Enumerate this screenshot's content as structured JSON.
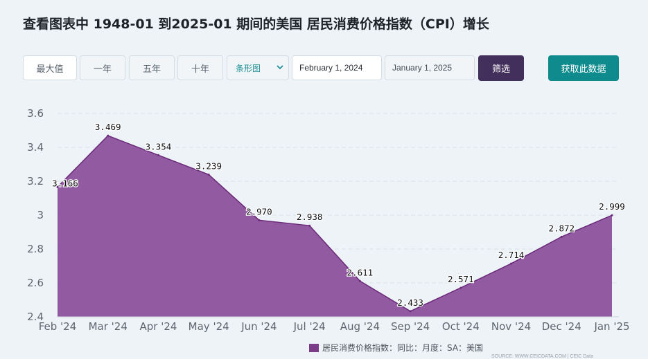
{
  "header": {
    "title": "查看图表中 1948-01 到2025-01 期间的美国 居民消费价格指数（CPI）增长"
  },
  "toolbar": {
    "range_buttons": [
      "最大值",
      "一年",
      "五年",
      "十年"
    ],
    "chart_type_select": "条形图",
    "start_date": "February 1, 2024",
    "end_date": "January 1, 2025",
    "filter_label": "筛选",
    "get_data_label": "获取此数据"
  },
  "colors": {
    "area_fill": "#8b4d9a",
    "area_stroke": "#6b2a7a",
    "filter_button": "#432f5c",
    "get_data_button": "#0f8b8d"
  },
  "chart_data": {
    "type": "area",
    "categories": [
      "Feb '24",
      "Mar '24",
      "Apr '24",
      "May '24",
      "Jun '24",
      "Jul '24",
      "Aug '24",
      "Sep '24",
      "Oct '24",
      "Nov '24",
      "Dec '24",
      "Jan '25"
    ],
    "series": [
      {
        "name": "居民消费价格指数：同比：月度：SA：美国",
        "values": [
          3.166,
          3.469,
          3.354,
          3.239,
          2.97,
          2.938,
          2.611,
          2.433,
          2.571,
          2.714,
          2.872,
          2.999
        ]
      }
    ],
    "data_labels": [
      "3.166",
      "3.469",
      "3.354",
      "3.239",
      "2.970",
      "2.938",
      "2.611",
      "2.433",
      "2.571",
      "2.714",
      "2.872",
      "2.999"
    ],
    "y_ticks": [
      "2.4",
      "2.6",
      "2.8",
      "3",
      "3.2",
      "3.4",
      "3.6"
    ],
    "ylim": [
      2.4,
      3.6
    ],
    "grid": true,
    "legend_position": "bottom-center",
    "source": "SOURCE: WWW.CEICDATA.COM | CEIC Data"
  }
}
